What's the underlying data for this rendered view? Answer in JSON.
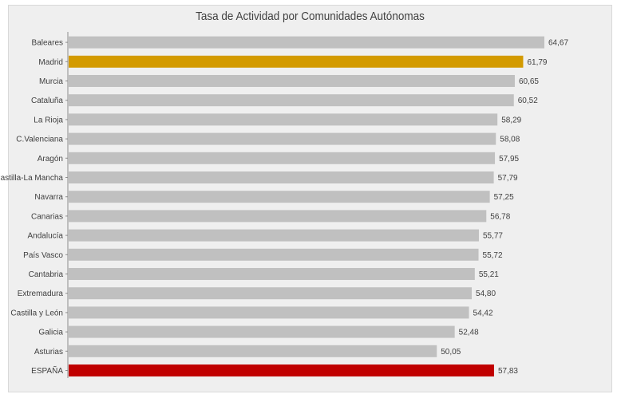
{
  "chart_data": {
    "type": "bar",
    "orientation": "horizontal",
    "title": "Tasa de Actividad por Comunidades  Autónomas",
    "categories": [
      "Baleares",
      "Madrid",
      "Murcia",
      "Cataluña",
      "La Rioja",
      "C.Valenciana",
      "Aragón",
      "Castilla-La Mancha",
      "Navarra",
      "Canarias",
      "Andalucía",
      "País Vasco",
      "Cantabria",
      "Extremadura",
      "Castilla y León",
      "Galicia",
      "Asturias",
      "ESPAÑA"
    ],
    "values": [
      64.67,
      61.79,
      60.65,
      60.52,
      58.29,
      58.08,
      57.95,
      57.79,
      57.25,
      56.78,
      55.77,
      55.72,
      55.21,
      54.8,
      54.42,
      52.48,
      50.05,
      57.83
    ],
    "value_labels": [
      "64,67",
      "61,79",
      "60,65",
      "60,52",
      "58,29",
      "58,08",
      "57,95",
      "57,79",
      "57,25",
      "56,78",
      "55,77",
      "55,72",
      "55,21",
      "54,80",
      "54,42",
      "52,48",
      "50,05",
      "57,83"
    ],
    "bar_colors": [
      "#c0c0c0",
      "#d39a00",
      "#c0c0c0",
      "#c0c0c0",
      "#c0c0c0",
      "#c0c0c0",
      "#c0c0c0",
      "#c0c0c0",
      "#c0c0c0",
      "#c0c0c0",
      "#c0c0c0",
      "#c0c0c0",
      "#c0c0c0",
      "#c0c0c0",
      "#c0c0c0",
      "#c0c0c0",
      "#c0c0c0",
      "#c00000"
    ],
    "xlim": [
      0,
      100
    ],
    "grid": false,
    "legend": "none",
    "background_color": "#efefef"
  }
}
